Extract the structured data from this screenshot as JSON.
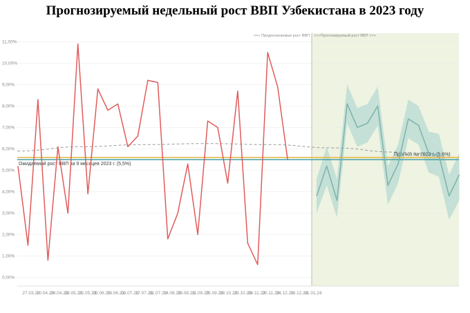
{
  "title": "Прогнозируемый недельный рост ВВП Узбекистана в 2023 году",
  "chart_data": {
    "type": "line",
    "title": "Прогнозируемый недельный рост ВВП Узбекистана в 2023 году",
    "ylim": [
      -0.4,
      11.4
    ],
    "grid": true,
    "y_ticks": [
      "0,00%",
      "1,00%",
      "2,00%",
      "3,00%",
      "4,00%",
      "5,00%",
      "6,00%",
      "7,00%",
      "8,00%",
      "9,00%",
      "10,00%",
      "11,00%"
    ],
    "y_tick_values": [
      0,
      1,
      2,
      3,
      4,
      5,
      6,
      7,
      8,
      9,
      10,
      11
    ],
    "x_labels": [
      "27.03.23",
      "10.04.23",
      "24.04.23",
      "08.05.23",
      "22.05.23",
      "05.06.23",
      "19.06.23",
      "03.07.23",
      "17.07.23",
      "31.07.23",
      "14.08.23",
      "28.08.23",
      "11.09.23",
      "25.09.23",
      "09.10.23",
      "23.10.23",
      "06.11.23",
      "20.11.23",
      "04.12.23",
      "18.12.23",
      "01.01.24"
    ],
    "region_labels": {
      "left": "<<< Предполагаемые рост ВВП",
      "right": ">>>Прогнозируемый рост ВВП >>>"
    },
    "series": [
      {
        "role": "estimated",
        "color": "#e05a5a",
        "values": [
          5.2,
          1.5,
          8.3,
          0.8,
          6.1,
          3.0,
          10.9,
          3.9,
          8.8,
          7.8,
          8.1,
          6.1,
          6.6,
          9.2,
          9.1,
          1.8,
          3.0,
          5.3,
          2.0,
          7.3,
          7.0,
          4.4,
          8.7,
          1.6,
          0.6,
          10.5,
          8.9,
          5.5
        ]
      },
      {
        "role": "forecast",
        "color": "#7fb5ad",
        "values": [
          3.8,
          5.2,
          3.6,
          8.1,
          7.0,
          7.2,
          8.0,
          4.3,
          5.3,
          7.4,
          7.1,
          5.8,
          5.7,
          3.8,
          4.8
        ],
        "upper": [
          4.6,
          6.1,
          4.6,
          9.0,
          7.9,
          8.1,
          8.9,
          5.2,
          6.2,
          8.3,
          8.0,
          6.8,
          6.7,
          4.8,
          5.8
        ],
        "lower": [
          3.0,
          4.3,
          2.8,
          7.2,
          6.1,
          6.3,
          7.1,
          3.4,
          4.4,
          6.5,
          6.2,
          4.9,
          4.7,
          2.7,
          3.6
        ]
      }
    ],
    "reference_lines": [
      {
        "label": "Ожидаемый рост ВВП за 9 месяцев 2023 г. (5,5%)",
        "value": 5.5,
        "color": "#3f9fa8"
      },
      {
        "label": "Прогноз на 2023 г. (5,6%)",
        "value": 5.6,
        "color": "#e8b84a"
      }
    ],
    "trend": {
      "color": "#9a9a9a",
      "values": [
        5.9,
        6.1,
        6.2,
        6.25,
        6.2,
        6.05,
        5.85,
        5.6
      ]
    },
    "colors": {
      "forecast_region": "#eef3e2",
      "grid": "#ececec",
      "divider": "#b8c0a8",
      "band": "#b7d9d2"
    }
  }
}
